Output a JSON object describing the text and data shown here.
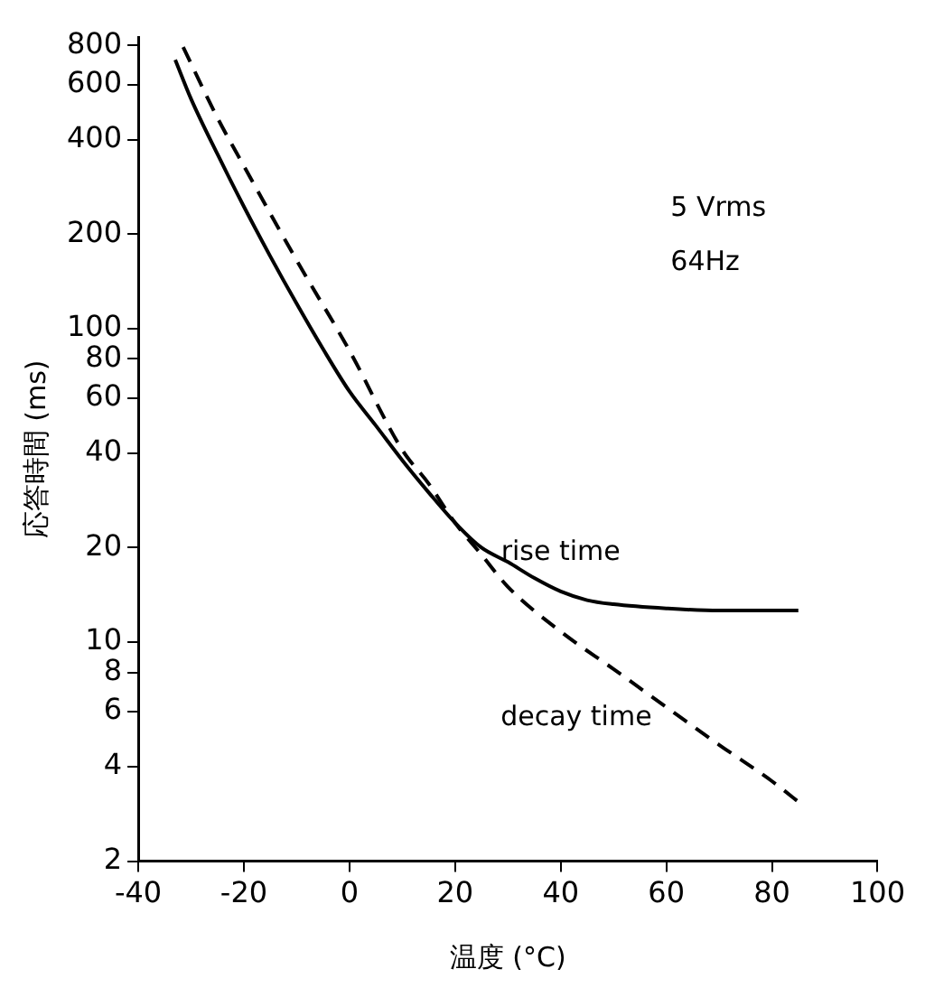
{
  "chart_data": {
    "type": "line",
    "xlabel": "温度 (°C)",
    "ylabel": "応答時間 (ms)",
    "log": "y",
    "xlim": [
      -40,
      100
    ],
    "xticks": [
      -40,
      -20,
      0,
      20,
      40,
      60,
      80,
      100
    ],
    "ylim": [
      2,
      850
    ],
    "yticks": [
      2,
      4,
      6,
      8,
      10,
      20,
      40,
      60,
      80,
      100,
      200,
      400,
      600,
      800
    ],
    "grid": false,
    "legend": false,
    "marker": "none",
    "annotations": [
      "5 Vrms",
      "64Hz"
    ],
    "series": [
      {
        "name": "rise time",
        "color": "#000000",
        "line_style": "solid",
        "x": [
          -33,
          -30,
          -25,
          -20,
          -15,
          -10,
          -5,
          0,
          5,
          10,
          15,
          20,
          25,
          30,
          35,
          40,
          45,
          50,
          60,
          70,
          85
        ],
        "values": [
          720,
          540,
          360,
          245,
          170,
          120,
          86,
          63,
          49,
          38,
          30,
          24,
          20,
          18,
          16,
          14.5,
          13.6,
          13.2,
          12.8,
          12.6,
          12.6
        ]
      },
      {
        "name": "decay time",
        "color": "#000000",
        "line_style": "dashed",
        "x": [
          -31.5,
          -25,
          -20,
          -10,
          0,
          10,
          15,
          20,
          25,
          30,
          40,
          50,
          60,
          70,
          80,
          86
        ],
        "values": [
          790,
          470,
          330,
          165,
          85,
          41,
          32,
          24,
          19,
          15,
          10.8,
          8.2,
          6.2,
          4.7,
          3.6,
          3
        ]
      }
    ]
  }
}
